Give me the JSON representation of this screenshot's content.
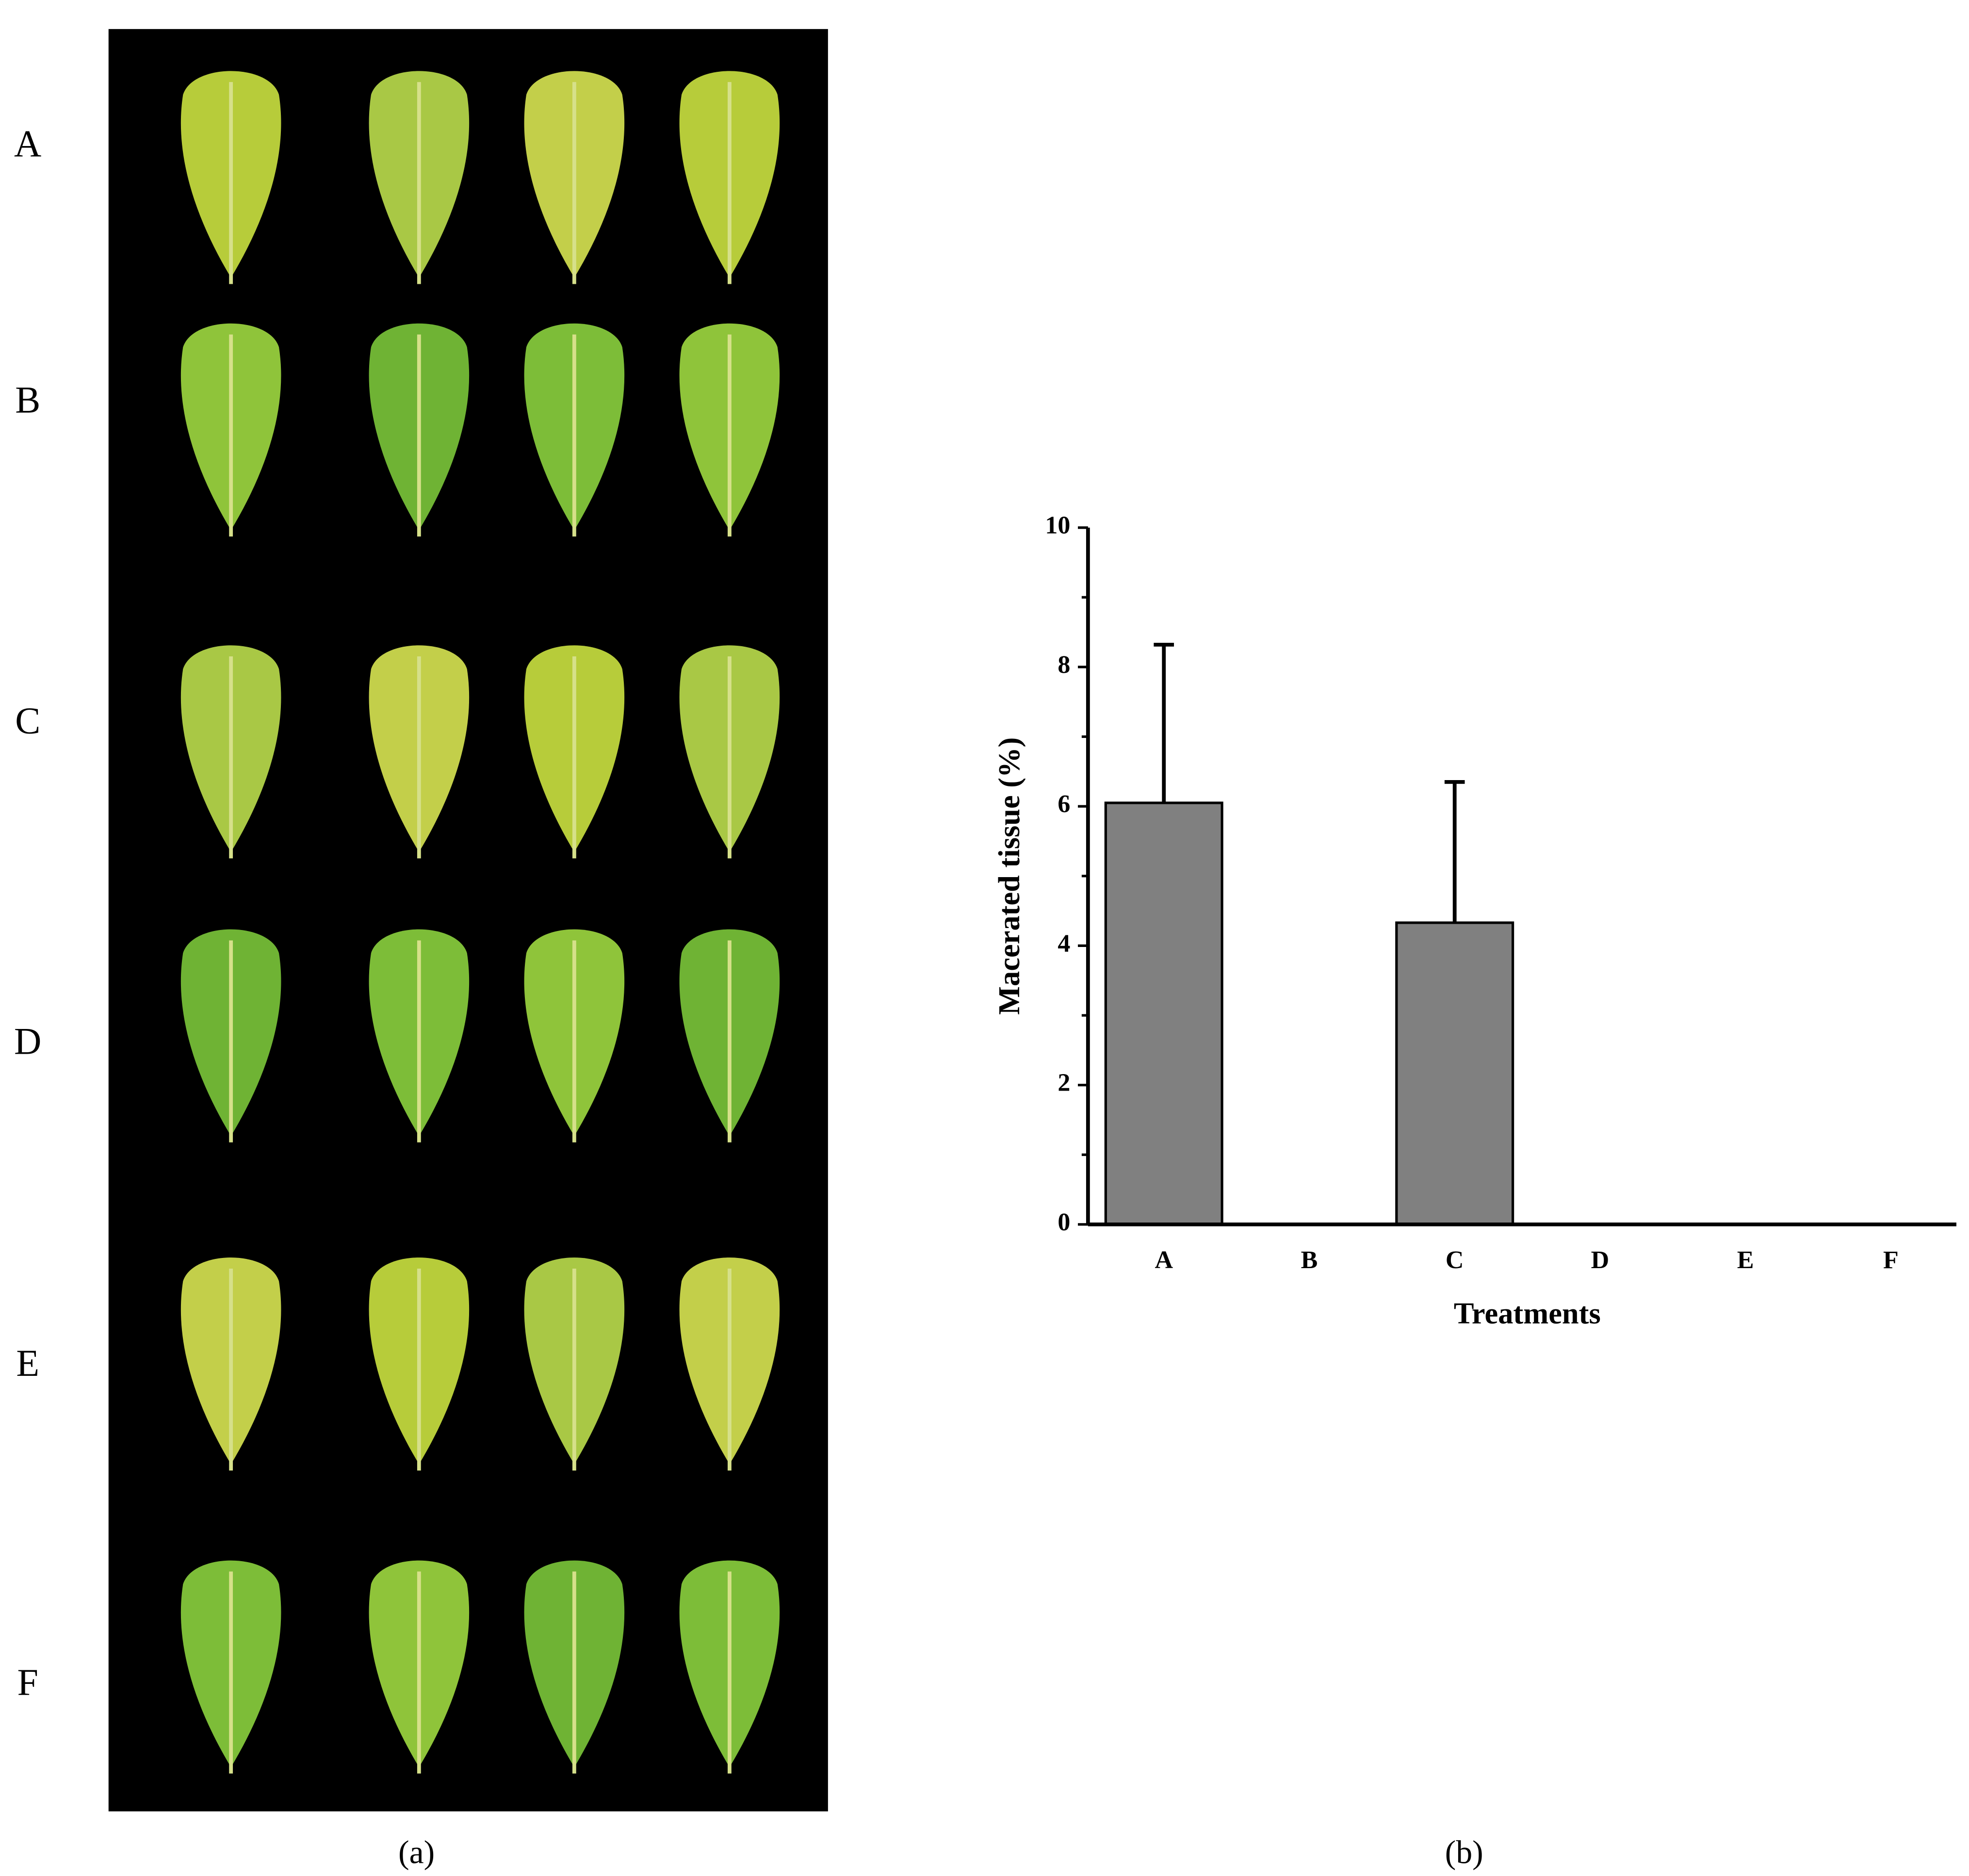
{
  "panel_a": {
    "row_labels": [
      "A",
      "B",
      "C",
      "D",
      "E",
      "F"
    ],
    "caption": "(a)"
  },
  "chart_data": {
    "type": "bar",
    "caption": "(b)",
    "ylabel": "Macerated tissue (%)",
    "xlabel": "Treatments",
    "categories": [
      "A",
      "B",
      "C",
      "D",
      "E",
      "F"
    ],
    "values": [
      6.05,
      0,
      4.33,
      0,
      0,
      0
    ],
    "errors": [
      2.27,
      null,
      2.02,
      null,
      null,
      null
    ],
    "color": "#808080",
    "ylim": [
      0,
      10
    ],
    "yticks": [
      0,
      2,
      4,
      6,
      8,
      10
    ],
    "minor_yticks": [
      1,
      3,
      5,
      7,
      9
    ]
  }
}
